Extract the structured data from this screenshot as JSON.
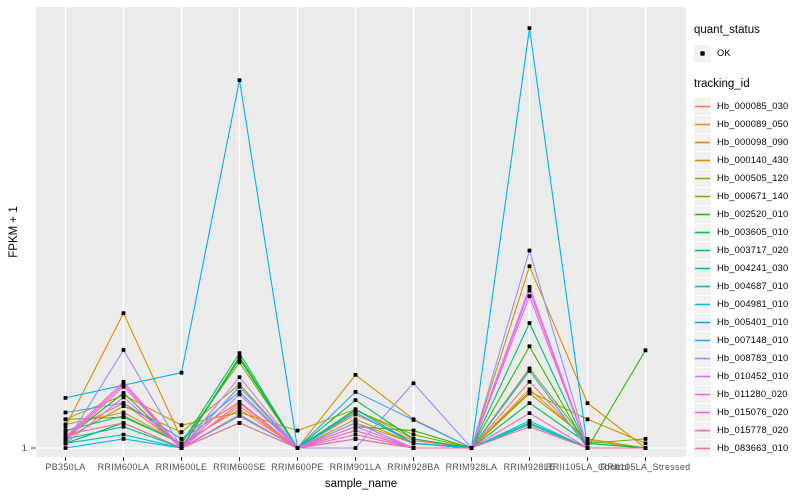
{
  "figure": {
    "background": "#FFFFFF",
    "panel_background": "#EBEBEB",
    "grid_color": "#FFFFFF",
    "axis_text_color": "#4D4D4D",
    "tick_color": "#333333",
    "point_color": "#000000",
    "legend_key_background": "#F2F2F2"
  },
  "chart_data": {
    "type": "line",
    "title": "",
    "xlabel": "sample_name",
    "ylabel": "FPKM + 1",
    "y_scale": "log10",
    "ylim": [
      1,
      100
    ],
    "y_ticks": [
      {
        "label": "1",
        "value": 1
      }
    ],
    "grid": "vertical-major-only",
    "legend_position": "right",
    "categories": [
      "PB350LA",
      "RRIM600LA",
      "RRIM600LE",
      "RRIM600SE",
      "RRIM600PE",
      "RRIM901LA",
      "RRIM928BA",
      "RRIM928LA",
      "RRIM928LE",
      "RRII105LA_Control",
      "RRII105LA_Stressed"
    ],
    "quant_status": {
      "title": "quant_status",
      "entries": [
        {
          "label": "OK",
          "marker": "black-point"
        }
      ]
    },
    "tracking_legend_title": "tracking_id",
    "series": [
      {
        "name": "Hb_000085_030",
        "color": "#F8766D",
        "values": [
          1.18,
          1.6,
          1.02,
          1.55,
          1.0,
          1.42,
          1.08,
          1.0,
          2.0,
          1.05,
          1.0
        ]
      },
      {
        "name": "Hb_000089_050",
        "color": "#E98A2B",
        "values": [
          1.28,
          1.45,
          1.05,
          1.5,
          1.0,
          1.3,
          1.05,
          1.0,
          1.85,
          1.08,
          1.0
        ]
      },
      {
        "name": "Hb_000098_090",
        "color": "#D89000",
        "values": [
          1.25,
          4.1,
          1.1,
          1.62,
          1.0,
          2.15,
          1.35,
          1.0,
          6.7,
          1.6,
          1.0
        ]
      },
      {
        "name": "Hb_000140_430",
        "color": "#C09B00",
        "values": [
          1.35,
          1.74,
          1.27,
          1.45,
          1.2,
          1.5,
          1.1,
          1.0,
          1.8,
          1.35,
          1.05
        ]
      },
      {
        "name": "Hb_000505_120",
        "color": "#A3A500",
        "values": [
          1.1,
          1.55,
          1.18,
          1.95,
          1.0,
          1.35,
          1.05,
          1.0,
          1.77,
          1.1,
          1.0
        ]
      },
      {
        "name": "Hb_000671_140",
        "color": "#7CAE00",
        "values": [
          1.35,
          1.38,
          1.05,
          2.45,
          1.0,
          1.48,
          1.15,
          1.0,
          2.3,
          1.05,
          1.1
        ]
      },
      {
        "name": "Hb_002520_010",
        "color": "#39B600",
        "values": [
          1.1,
          1.78,
          1.0,
          2.6,
          1.0,
          1.25,
          1.2,
          1.0,
          2.9,
          1.0,
          2.78
        ]
      },
      {
        "name": "Hb_003605_010",
        "color": "#00BB4E",
        "values": [
          1.05,
          1.3,
          1.0,
          2.55,
          1.0,
          1.65,
          1.1,
          1.0,
          1.6,
          1.05,
          1.0
        ]
      },
      {
        "name": "Hb_003717_020",
        "color": "#00BF7D",
        "values": [
          1.2,
          1.4,
          1.05,
          2.7,
          1.0,
          1.5,
          1.05,
          1.0,
          3.7,
          1.0,
          1.0
        ]
      },
      {
        "name": "Hb_004241_030",
        "color": "#00C1A3",
        "values": [
          1.1,
          1.25,
          1.0,
          1.9,
          1.0,
          1.3,
          1.0,
          1.0,
          1.3,
          1.0,
          1.0
        ]
      },
      {
        "name": "Hb_004687_010",
        "color": "#00BFC4",
        "values": [
          1.05,
          1.15,
          1.0,
          1.4,
          1.0,
          1.2,
          1.0,
          1.0,
          1.28,
          1.0,
          1.0
        ]
      },
      {
        "name": "Hb_004981_010",
        "color": "#00BADE",
        "values": [
          1.0,
          1.1,
          1.0,
          1.3,
          1.0,
          1.1,
          1.0,
          1.0,
          1.33,
          1.0,
          1.0
        ]
      },
      {
        "name": "Hb_005401_010",
        "color": "#00B0F6",
        "values": [
          1.69,
          1.93,
          2.2,
          47.0,
          1.0,
          1.45,
          1.05,
          1.0,
          81.0,
          1.0,
          1.0
        ]
      },
      {
        "name": "Hb_007148_010",
        "color": "#35A2FF",
        "values": [
          1.45,
          1.6,
          1.1,
          1.8,
          1.0,
          1.8,
          1.34,
          1.0,
          2.24,
          1.0,
          1.0
        ]
      },
      {
        "name": "Hb_008783_010",
        "color": "#9590FF",
        "values": [
          1.05,
          2.79,
          1.0,
          1.9,
          1.0,
          1.0,
          1.97,
          1.0,
          7.9,
          1.0,
          1.0
        ]
      },
      {
        "name": "Hb_010452_010",
        "color": "#C77CFF",
        "values": [
          1.08,
          1.9,
          1.0,
          2.1,
          1.0,
          1.3,
          1.0,
          1.0,
          5.4,
          1.0,
          1.0
        ]
      },
      {
        "name": "Hb_011280_020",
        "color": "#E76BF3",
        "values": [
          1.05,
          1.7,
          1.0,
          1.75,
          1.0,
          1.25,
          1.0,
          1.0,
          5.2,
          1.0,
          1.0
        ]
      },
      {
        "name": "Hb_015076_020",
        "color": "#FA62DB",
        "values": [
          1.12,
          2.0,
          1.0,
          1.6,
          1.0,
          1.2,
          1.0,
          1.0,
          4.9,
          1.0,
          1.0
        ]
      },
      {
        "name": "Hb_015778_020",
        "color": "#FF62BC",
        "values": [
          1.1,
          1.95,
          1.0,
          1.42,
          1.0,
          1.1,
          1.0,
          1.0,
          1.44,
          1.0,
          1.0
        ]
      },
      {
        "name": "Hb_083663_010",
        "color": "#FF6C90",
        "values": [
          1.15,
          1.3,
          1.0,
          1.3,
          1.0,
          1.15,
          1.0,
          1.0,
          1.25,
          1.0,
          1.0
        ]
      }
    ]
  }
}
